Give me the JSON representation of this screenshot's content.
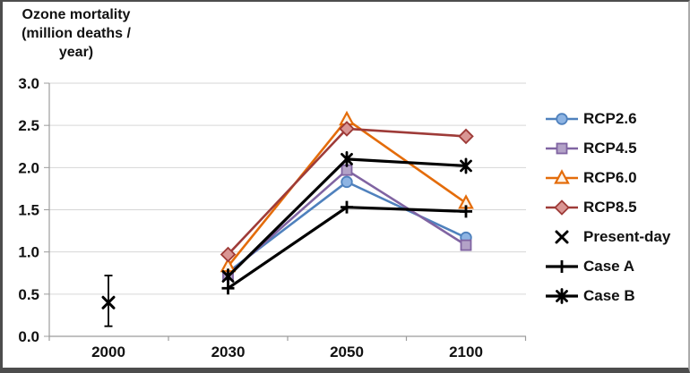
{
  "figure": {
    "background": "#ffffff",
    "border_color": "#4d4d4d"
  },
  "chart_data": {
    "type": "line",
    "title_lines": [
      "Ozone mortality",
      "(million deaths /",
      "year)"
    ],
    "categories": [
      "2000",
      "2030",
      "2050",
      "2100"
    ],
    "y_ticks": [
      "3.0",
      "2.5",
      "2.0",
      "1.5",
      "1.0",
      "0.5",
      "0.0"
    ],
    "ylim": [
      0.0,
      3.0
    ],
    "grid": true,
    "legend_position": "right",
    "colors": {
      "gridline": "#d6d6d6",
      "axis": "#9c9c9c",
      "text": "#111111"
    },
    "series": [
      {
        "name": "RCP2.6",
        "marker": "circle",
        "line_color": "#4F81BD",
        "marker_fill": "#8EB4E3",
        "has_line": true,
        "values": [
          null,
          0.76,
          1.83,
          1.17
        ]
      },
      {
        "name": "RCP4.5",
        "marker": "square",
        "line_color": "#8064A2",
        "marker_fill": "#B3A2C7",
        "has_line": true,
        "values": [
          null,
          0.73,
          1.97,
          1.08
        ]
      },
      {
        "name": "RCP6.0",
        "marker": "triangle",
        "line_color": "#E46C0A",
        "marker_fill": "#FDF3E7",
        "has_line": true,
        "values": [
          null,
          0.83,
          2.57,
          1.58
        ]
      },
      {
        "name": "RCP8.5",
        "marker": "diamond",
        "line_color": "#9E3B38",
        "marker_fill": "#D99694",
        "has_line": true,
        "values": [
          null,
          0.97,
          2.46,
          2.37
        ]
      },
      {
        "name": "Present-day",
        "marker": "x",
        "line_color": "#000000",
        "marker_fill": "#000000",
        "has_line": false,
        "values": [
          0.4,
          null,
          null,
          null
        ],
        "error_bar": {
          "category": "2000",
          "low": 0.12,
          "high": 0.72
        }
      },
      {
        "name": "Case A",
        "marker": "plus",
        "line_color": "#000000",
        "marker_fill": "#000000",
        "has_line": true,
        "values": [
          null,
          0.57,
          1.53,
          1.48
        ]
      },
      {
        "name": "Case B",
        "marker": "star",
        "line_color": "#000000",
        "marker_fill": "#000000",
        "has_line": true,
        "values": [
          null,
          0.71,
          2.1,
          2.02
        ]
      }
    ]
  }
}
